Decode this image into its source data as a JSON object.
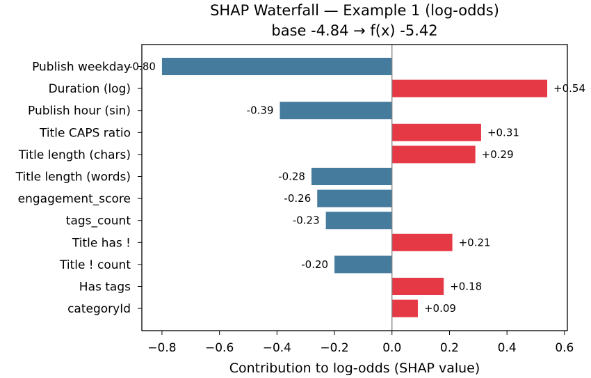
{
  "chart_data": {
    "type": "bar",
    "orientation": "horizontal",
    "title": "SHAP Waterfall — Example 1 (log-odds)",
    "subtitle": "base -4.84 → f(x) -5.42",
    "xlabel": "Contribution to log-odds (SHAP value)",
    "xlim": [
      -0.87,
      0.61
    ],
    "xticks": [
      -0.8,
      -0.6,
      -0.4,
      -0.2,
      0.0,
      0.2,
      0.4,
      0.6
    ],
    "xtick_labels": [
      "−0.8",
      "−0.6",
      "−0.4",
      "−0.2",
      "0.0",
      "0.2",
      "0.4",
      "0.6"
    ],
    "categories": [
      "Publish weekday",
      "Duration (log)",
      "Publish hour (sin)",
      "Title CAPS ratio",
      "Title length (chars)",
      "Title length (words)",
      "engagement_score",
      "tags_count",
      "Title has !",
      "Title ! count",
      "Has tags",
      "categoryId"
    ],
    "values": [
      -0.8,
      0.54,
      -0.39,
      0.31,
      0.29,
      -0.28,
      -0.26,
      -0.23,
      0.21,
      -0.2,
      0.18,
      0.09
    ],
    "value_labels": [
      "-0.80",
      "+0.54",
      "-0.39",
      "+0.31",
      "+0.29",
      "-0.28",
      "-0.26",
      "-0.23",
      "+0.21",
      "-0.20",
      "+0.18",
      "+0.09"
    ],
    "grid": false,
    "colors": {
      "positive": "#e63946",
      "negative": "#457b9d",
      "zero_line": "#808080"
    }
  }
}
